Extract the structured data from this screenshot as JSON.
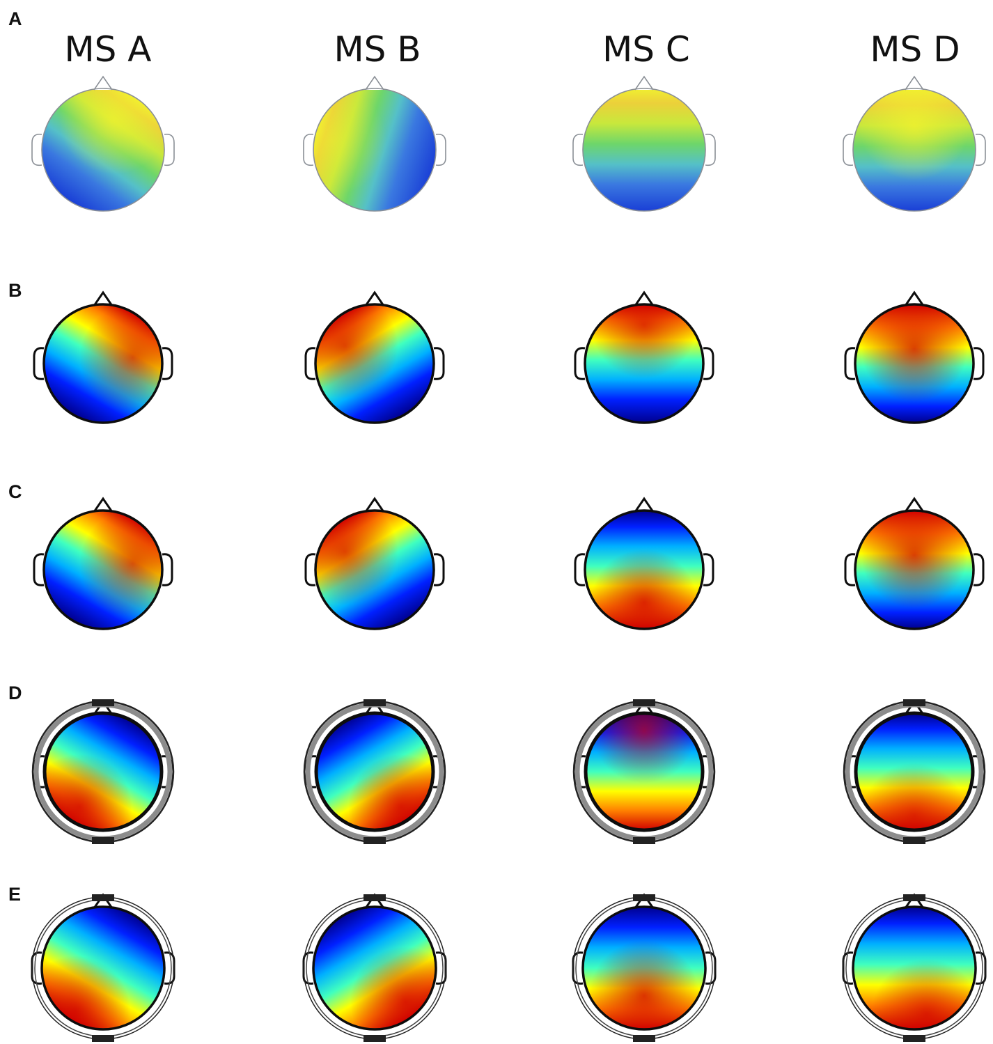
{
  "columns": [
    "MS A",
    "MS B",
    "MS C",
    "MS D"
  ],
  "rows": [
    {
      "label": "A",
      "style": "classic-ears",
      "palette": "classic",
      "maps": [
        {
          "angle": 35,
          "shift": 0.22,
          "blob": [
            0.18,
            -0.5,
            0.95
          ]
        },
        {
          "angle": -72,
          "shift": 0.25,
          "blob": [
            -0.7,
            -0.15,
            0.55
          ]
        },
        {
          "angle": 0,
          "shift": 0.18,
          "blob": [
            0.0,
            0.62,
            0.0
          ]
        },
        {
          "angle": 0,
          "shift": 0.15,
          "blob": [
            0.0,
            -0.4,
            1.0
          ]
        }
      ]
    },
    {
      "label": "B",
      "style": "outlined-ears",
      "palette": "jet",
      "maps": [
        {
          "angle": 30,
          "shift": 0.15,
          "blob": [
            0.5,
            -0.1,
            0.9
          ]
        },
        {
          "angle": -30,
          "shift": 0.15,
          "blob": [
            -0.5,
            -0.3,
            0.9
          ]
        },
        {
          "angle": 0,
          "shift": 0.15,
          "blob": [
            0.0,
            -0.65,
            0.9
          ]
        },
        {
          "angle": 0,
          "shift": 0.05,
          "blob": [
            0.0,
            -0.25,
            1.0
          ]
        }
      ]
    },
    {
      "label": "C",
      "style": "outlined-ears",
      "palette": "jet",
      "maps": [
        {
          "angle": 30,
          "shift": 0.15,
          "blob": [
            0.5,
            -0.1,
            0.9
          ]
        },
        {
          "angle": -30,
          "shift": 0.15,
          "blob": [
            -0.5,
            -0.3,
            0.9
          ]
        },
        {
          "angle": 180,
          "shift": 0.05,
          "blob": [
            0.0,
            0.55,
            1.0
          ]
        },
        {
          "angle": 0,
          "shift": 0.05,
          "blob": [
            0.0,
            -0.25,
            1.0
          ]
        }
      ]
    },
    {
      "label": "D",
      "style": "ring-head",
      "palette": "jet",
      "maps": [
        {
          "angle": 210,
          "shift": 0.1,
          "blob": [
            -0.4,
            0.6,
            1.0
          ]
        },
        {
          "angle": 150,
          "shift": 0.1,
          "blob": [
            0.45,
            0.6,
            1.0
          ]
        },
        {
          "angle": 180,
          "shift": 0.1,
          "blob": [
            0.0,
            -0.7,
            0.9
          ]
        },
        {
          "angle": 180,
          "shift": 0.05,
          "blob": [
            0.0,
            0.75,
            0.8
          ]
        }
      ]
    },
    {
      "label": "E",
      "style": "thin-ring-head",
      "palette": "jet",
      "maps": [
        {
          "angle": 210,
          "shift": 0.1,
          "blob": [
            -0.45,
            0.7,
            1.0
          ]
        },
        {
          "angle": 150,
          "shift": 0.1,
          "blob": [
            0.5,
            0.55,
            1.0
          ]
        },
        {
          "angle": 180,
          "shift": 0.1,
          "blob": [
            0.0,
            0.45,
            1.0
          ]
        },
        {
          "angle": 180,
          "shift": 0.05,
          "blob": [
            0.2,
            0.75,
            0.9
          ]
        }
      ]
    }
  ]
}
